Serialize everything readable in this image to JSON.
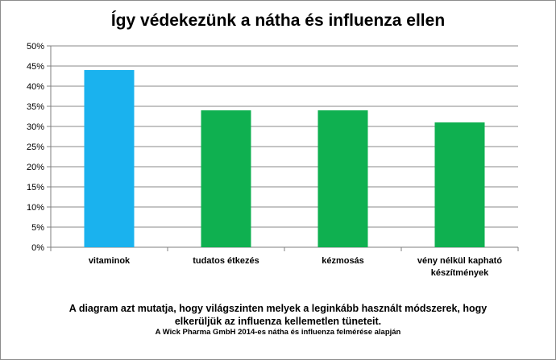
{
  "colors": {
    "highlight": "#1ab2ee",
    "bar": "#0fb050",
    "grid": "#8a8a8a",
    "axis": "#7f7f7f"
  },
  "chart_data": {
    "type": "bar",
    "title": "Így védekezünk a nátha és influenza ellen",
    "categories": [
      "vitaminok",
      "tudatos étkezés",
      "kézmosás",
      "vény nélkül kapható készítmények"
    ],
    "category_lines": [
      [
        "vitaminok"
      ],
      [
        "tudatos étkezés"
      ],
      [
        "kézmosás"
      ],
      [
        "vény nélkül kapható",
        "készítmények"
      ]
    ],
    "values": [
      44,
      34,
      34,
      31
    ],
    "unit": "%",
    "ylim": [
      0,
      50
    ],
    "yticks": [
      0,
      5,
      10,
      15,
      20,
      25,
      30,
      35,
      40,
      45,
      50
    ],
    "ytick_labels": [
      "0%",
      "5%",
      "10%",
      "15%",
      "20%",
      "25%",
      "30%",
      "35%",
      "40%",
      "45%",
      "50%"
    ],
    "highlight_index": 0,
    "grid": true,
    "legend": "none",
    "xlabel": "",
    "ylabel": ""
  },
  "caption": {
    "line1": "A diagram azt mutatja, hogy világszinten melyek a leginkább használt módszerek, hogy",
    "line2": "elkerüljük az influenza kellemetlen tüneteit.",
    "source": "A Wick Pharma GmbH 2014-es nátha és influenza felmérése alapján"
  }
}
